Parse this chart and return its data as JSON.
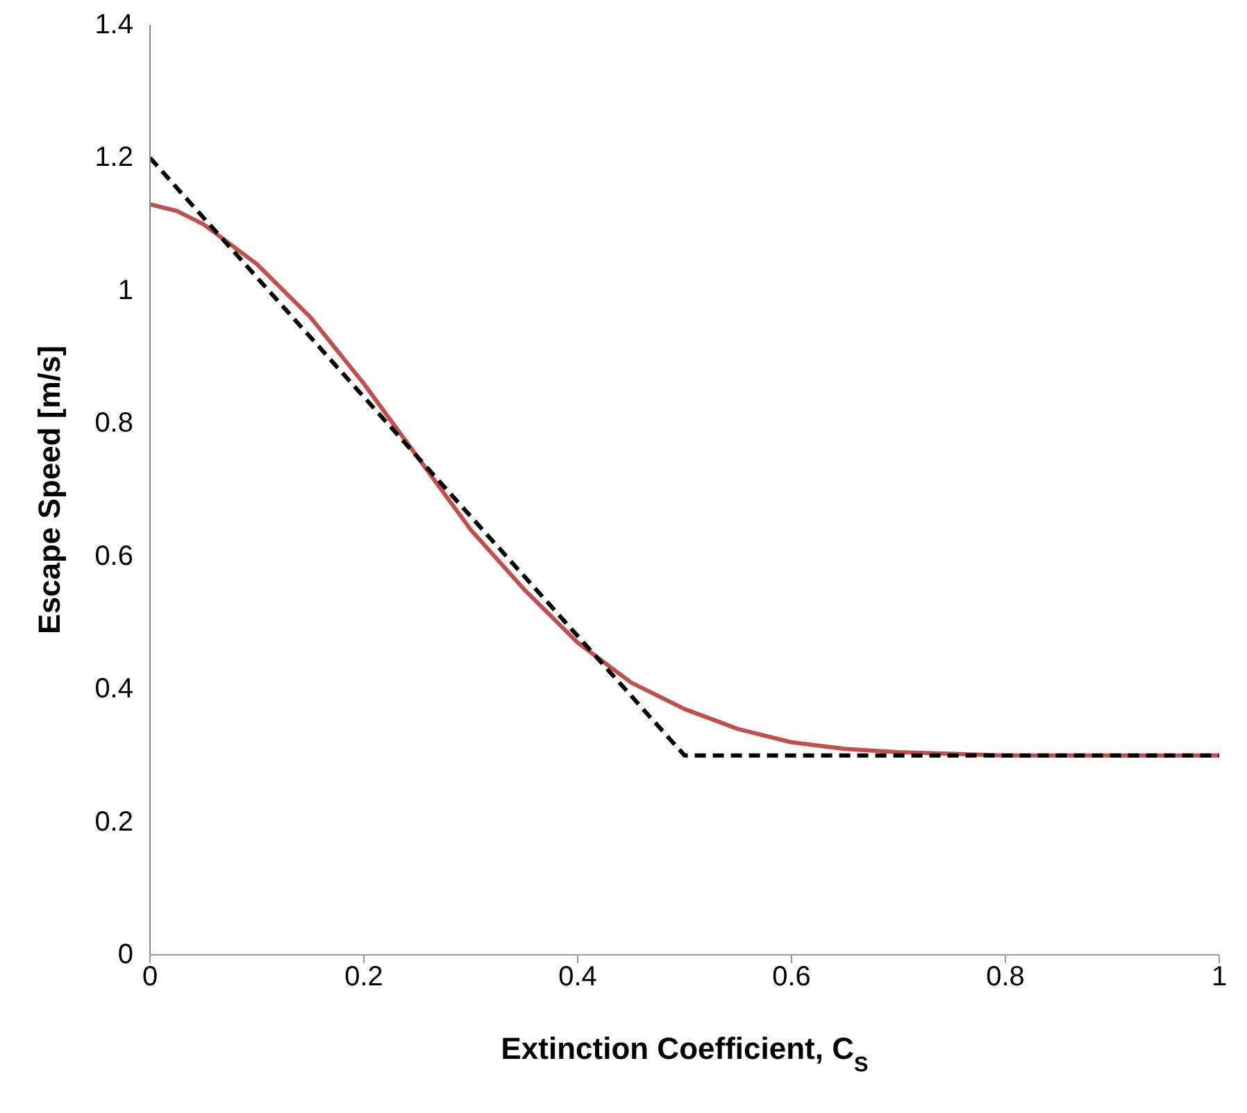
{
  "chart_data": {
    "type": "line",
    "xlabel": "Extinction Coefficient, C$_{S}$",
    "ylabel": "Escape Speed [m/s]",
    "xlim": [
      0,
      1
    ],
    "ylim": [
      0,
      1.4
    ],
    "xticks": [
      0,
      0.2,
      0.4,
      0.6,
      0.8,
      1
    ],
    "yticks": [
      0,
      0.2,
      0.4,
      0.6,
      0.8,
      1,
      1.2,
      1.4
    ],
    "grid": false,
    "marker": "none",
    "series": [
      {
        "color": "#c0504d",
        "line_style": "solid",
        "x": [
          0,
          0.025,
          0.05,
          0.075,
          0.1,
          0.125,
          0.15,
          0.175,
          0.2,
          0.25,
          0.3,
          0.35,
          0.4,
          0.425,
          0.45,
          0.475,
          0.5,
          0.55,
          0.6,
          0.65,
          0.7,
          0.8,
          0.9,
          1
        ],
        "values": [
          1.13,
          1.12,
          1.1,
          1.07,
          1.04,
          1.0,
          0.96,
          0.91,
          0.86,
          0.75,
          0.64,
          0.55,
          0.47,
          0.44,
          0.41,
          0.39,
          0.37,
          0.34,
          0.32,
          0.31,
          0.305,
          0.3,
          0.3,
          0.3
        ]
      },
      {
        "color": "#000000",
        "line_style": "dashed",
        "x": [
          0,
          0.5,
          1
        ],
        "values": [
          1.2,
          0.3,
          0.3
        ]
      }
    ]
  }
}
